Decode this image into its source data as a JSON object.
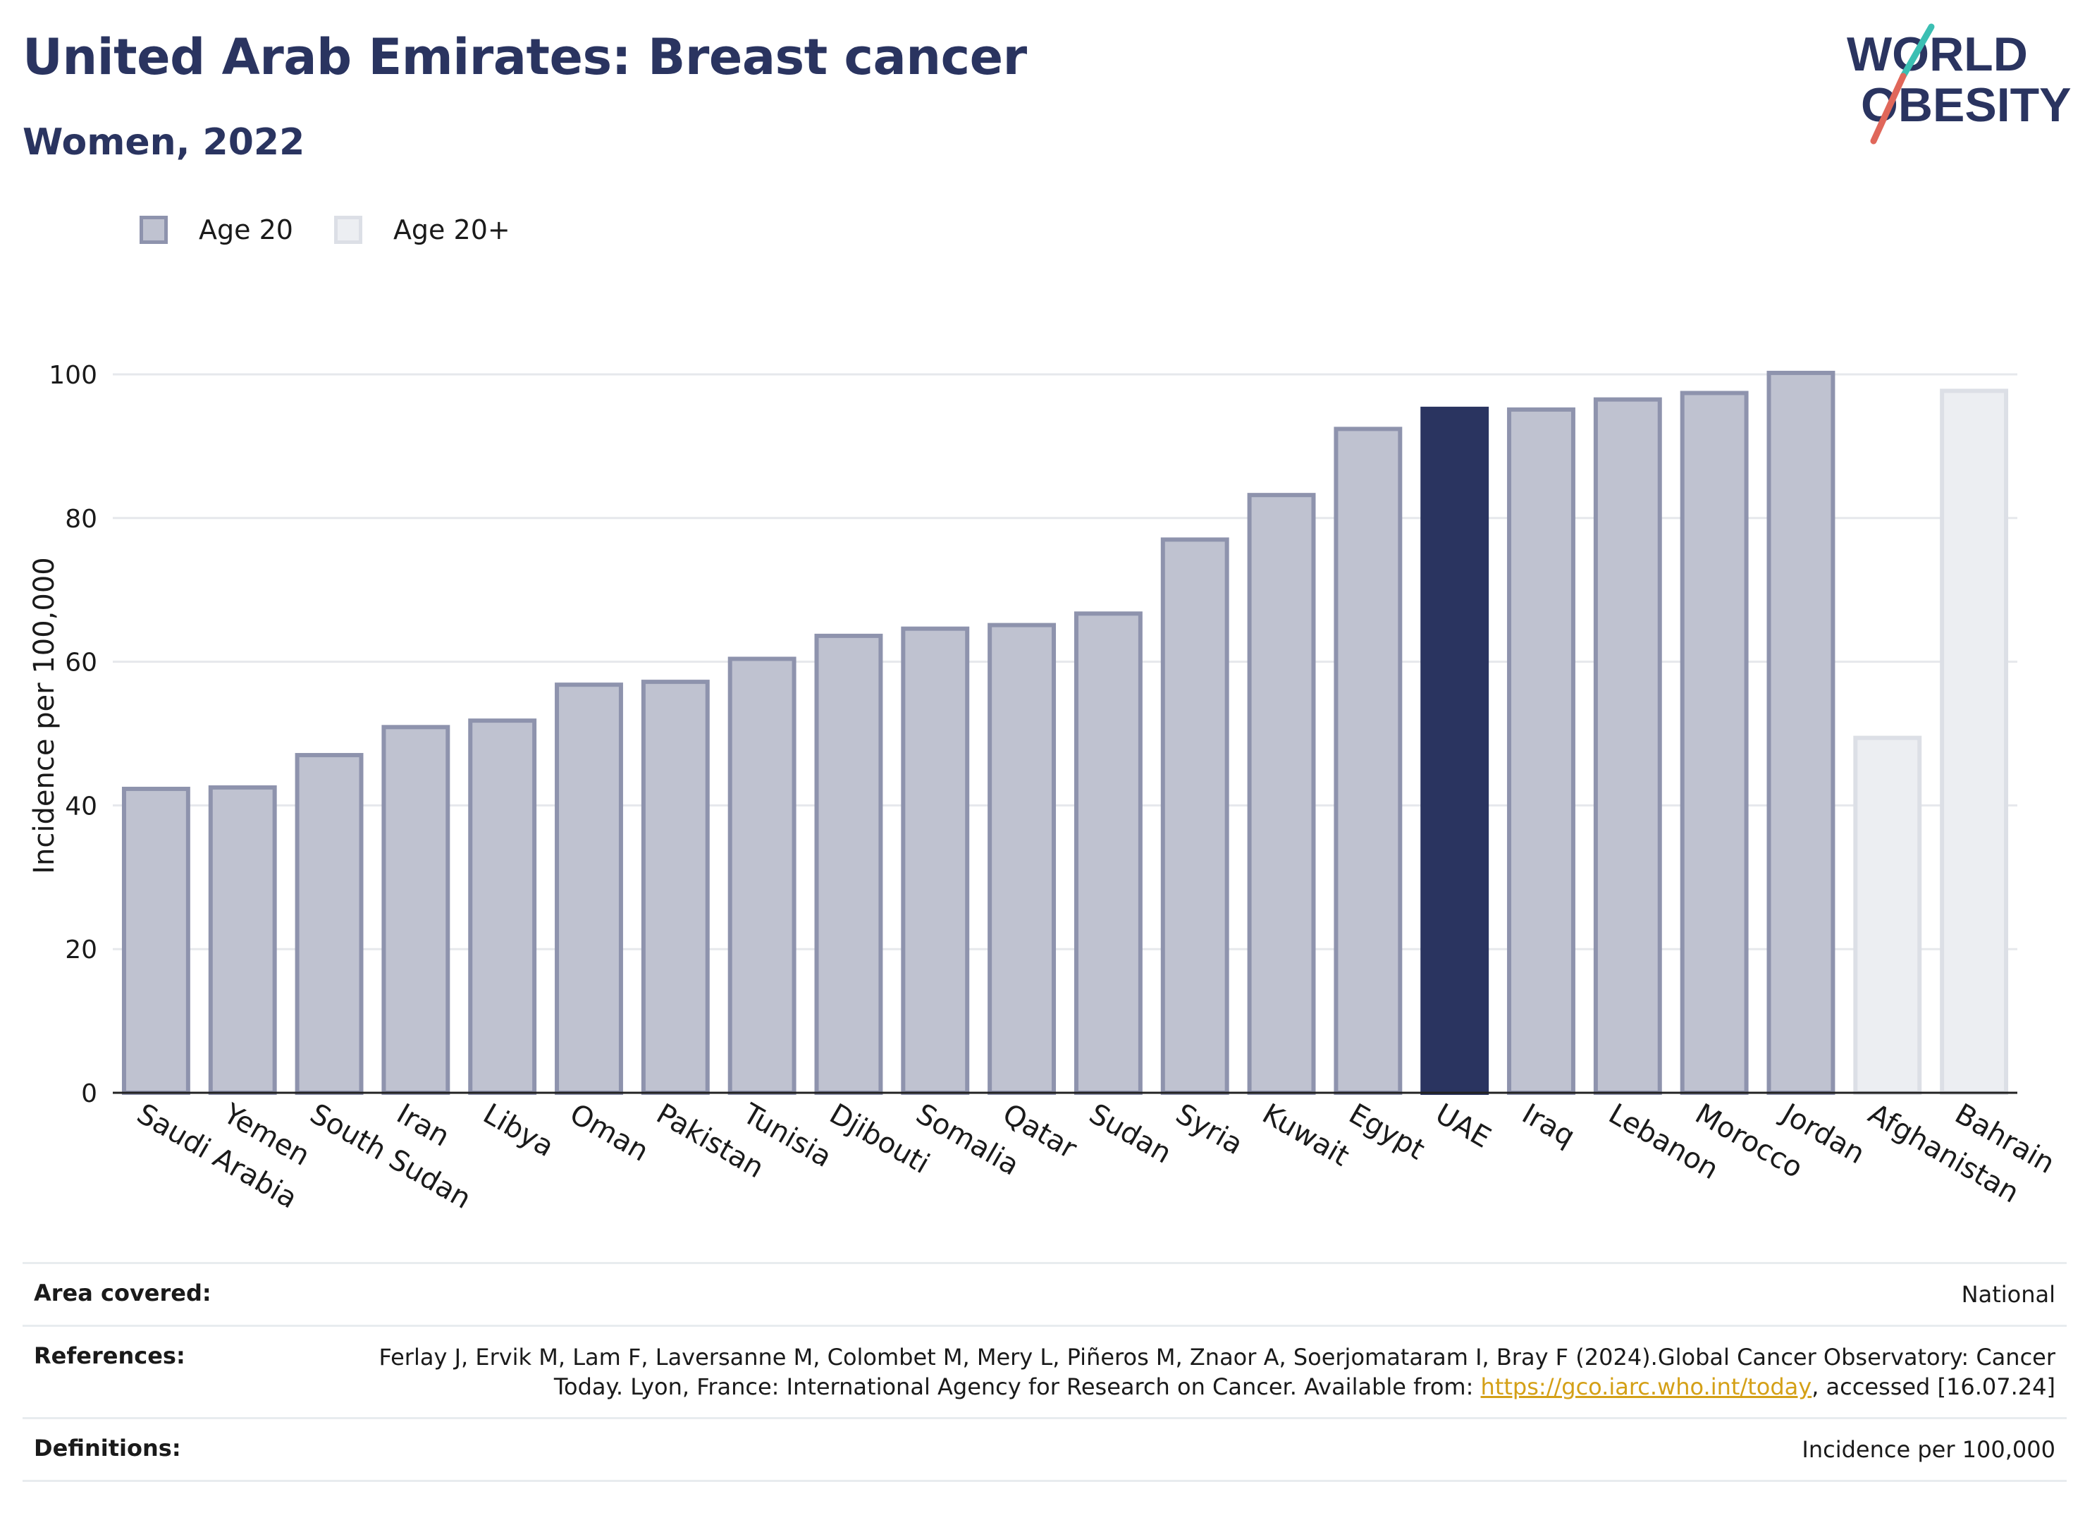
{
  "header": {
    "title": "United Arab Emirates: Breast cancer",
    "subtitle": "Women, 2022"
  },
  "logo": {
    "line1": "WORLD",
    "line2": "OBESITY",
    "accent_colors": [
      "#3bbfb3",
      "#e0675a"
    ],
    "text_color": "#2a3460"
  },
  "legend": [
    {
      "label": "Age 20",
      "fill": "#bfc2d0",
      "border": "#8e93ad"
    },
    {
      "label": "Age 20+",
      "fill": "#eceef2",
      "border": "#dcdfe6"
    }
  ],
  "chart_data": {
    "type": "bar",
    "ylabel": "Incidence per 100,000",
    "ylim": [
      0,
      105
    ],
    "yticks": [
      0,
      20,
      40,
      60,
      80,
      100
    ],
    "grid": true,
    "legend_position": "top-left",
    "highlight": "UAE",
    "highlight_color": "#2a3460",
    "categories": [
      "Saudi Arabia",
      "Yemen",
      "South Sudan",
      "Iran",
      "Libya",
      "Oman",
      "Pakistan",
      "Tunisia",
      "Djibouti",
      "Somalia",
      "Qatar",
      "Sudan",
      "Syria",
      "Kuwait",
      "Egypt",
      "UAE",
      "Iraq",
      "Lebanon",
      "Morocco",
      "Jordan",
      "Afghanistan",
      "Bahrain"
    ],
    "values": [
      42.3,
      42.5,
      47.0,
      50.9,
      51.8,
      56.8,
      57.2,
      60.4,
      63.6,
      64.6,
      65.1,
      66.7,
      77.0,
      83.2,
      92.4,
      95.2,
      95.1,
      96.5,
      97.4,
      100.2,
      49.4,
      97.7
    ],
    "series_of": [
      "Age 20",
      "Age 20",
      "Age 20",
      "Age 20",
      "Age 20",
      "Age 20",
      "Age 20",
      "Age 20",
      "Age 20",
      "Age 20",
      "Age 20",
      "Age 20",
      "Age 20",
      "Age 20",
      "Age 20",
      "Age 20",
      "Age 20",
      "Age 20",
      "Age 20",
      "Age 20",
      "Age 20+",
      "Age 20+"
    ]
  },
  "footer": {
    "area_label": "Area covered:",
    "area_value": "National",
    "references_label": "References:",
    "references_text": "Ferlay J, Ervik M, Lam F, Laversanne M, Colombet M, Mery L, Piñeros M, Znaor A, Soerjomataram I, Bray F (2024).Global Cancer Observatory: Cancer Today. Lyon, France: International Agency for Research on Cancer. Available from: ",
    "references_link": "https://gco.iarc.who.int/today",
    "references_after": ", accessed [16.07.24]",
    "definitions_label": "Definitions:",
    "definitions_value": "Incidence per 100,000"
  }
}
